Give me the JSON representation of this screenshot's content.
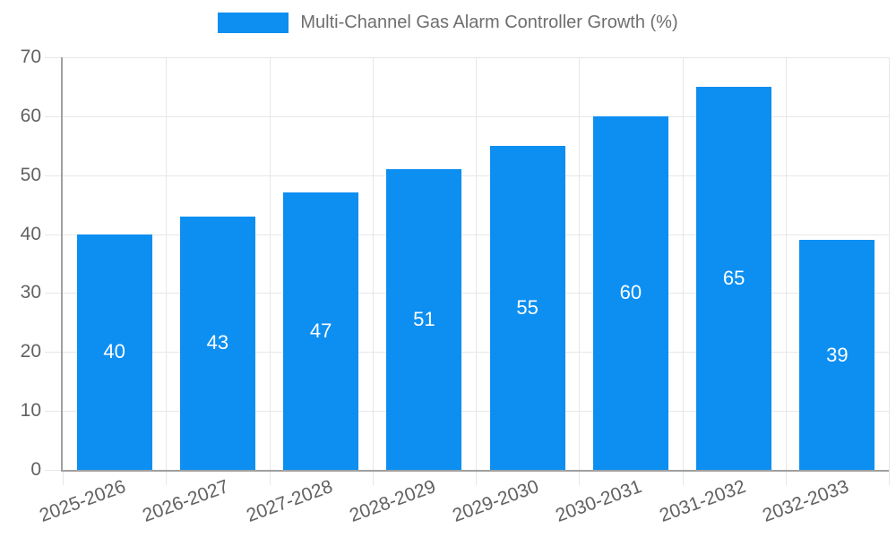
{
  "chart_data": {
    "type": "bar",
    "title": "Multi-Channel Gas Alarm Controller Growth (%)",
    "categories": [
      "2025-2026",
      "2026-2027",
      "2027-2028",
      "2028-2029",
      "2029-2030",
      "2030-2031",
      "2031-2032",
      "2032-2033"
    ],
    "values": [
      40,
      43,
      47,
      51,
      55,
      60,
      65,
      39
    ],
    "xlabel": "",
    "ylabel": "",
    "ylim": [
      0,
      70
    ],
    "yticks": [
      0,
      10,
      20,
      30,
      40,
      50,
      60,
      70
    ],
    "grid": true,
    "legend_position": "top-center",
    "value_labels": "inside-center",
    "colors": {
      "bar": "#0d8ff2",
      "value_label": "#ffffff",
      "grid": "#e7e7e7",
      "axis": "#a0a0a0",
      "tick_label": "#616161",
      "title": "#6e6e6e",
      "background": "#ffffff"
    }
  }
}
